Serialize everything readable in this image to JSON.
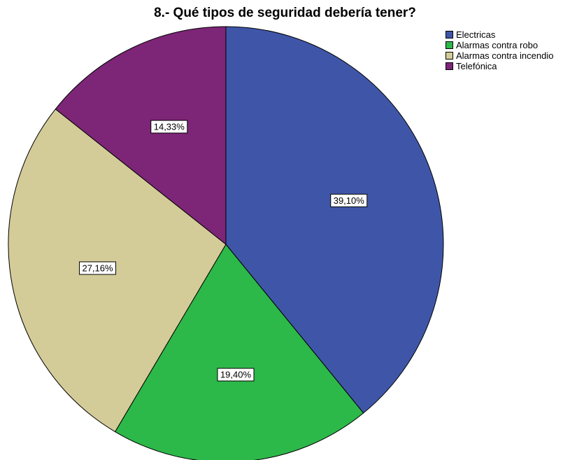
{
  "chart_data": {
    "type": "pie",
    "title": "8.- Qué tipos de seguridad debería tener?",
    "legend_position": "top-right",
    "slices": [
      {
        "label": "Electricas",
        "value": 39.1,
        "value_label": "39,10%",
        "color": "#3f56a8"
      },
      {
        "label": "Alarmas contra robo",
        "value": 19.4,
        "value_label": "19,40%",
        "color": "#2db84a"
      },
      {
        "label": "Alarmas contra incendio",
        "value": 27.16,
        "value_label": "27,16%",
        "color": "#d4cc98"
      },
      {
        "label": "Telefónica",
        "value": 14.33,
        "value_label": "14,33%",
        "color": "#7d2577"
      }
    ]
  }
}
